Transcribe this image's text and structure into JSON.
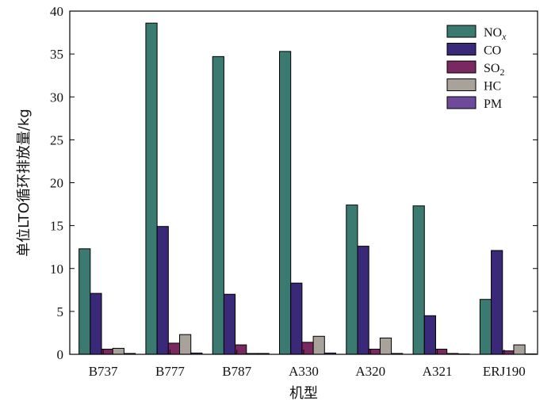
{
  "chart_data": {
    "type": "bar",
    "xlabel": "机型",
    "ylabel": "单位LTO循环排放量/kg",
    "ylim": [
      0,
      40
    ],
    "yticks": [
      0,
      5,
      10,
      15,
      20,
      25,
      30,
      35,
      40
    ],
    "categories": [
      "B737",
      "B777",
      "B787",
      "A330",
      "A320",
      "A321",
      "ERJ190"
    ],
    "legend_position": "top-right",
    "series": [
      {
        "name": "NOx",
        "sub": "x",
        "base": "NO",
        "color": "#3a7a70",
        "values": [
          12.3,
          38.6,
          34.7,
          35.3,
          17.4,
          17.3,
          6.4
        ]
      },
      {
        "name": "CO",
        "base": "CO",
        "color": "#3a2878",
        "values": [
          7.1,
          14.9,
          7.0,
          8.3,
          12.6,
          4.5,
          12.1
        ]
      },
      {
        "name": "SO2",
        "sub": "2",
        "base": "SO",
        "color": "#7a2860",
        "values": [
          0.6,
          1.3,
          1.1,
          1.4,
          0.6,
          0.6,
          0.4
        ]
      },
      {
        "name": "HC",
        "base": "HC",
        "color": "#a8a29a",
        "values": [
          0.7,
          2.3,
          0.1,
          2.1,
          1.9,
          0.1,
          1.1
        ]
      },
      {
        "name": "PM",
        "base": "PM",
        "color": "#6e4a9a",
        "values": [
          0.1,
          0.15,
          0.1,
          0.15,
          0.1,
          0.05,
          0.05
        ]
      }
    ]
  }
}
